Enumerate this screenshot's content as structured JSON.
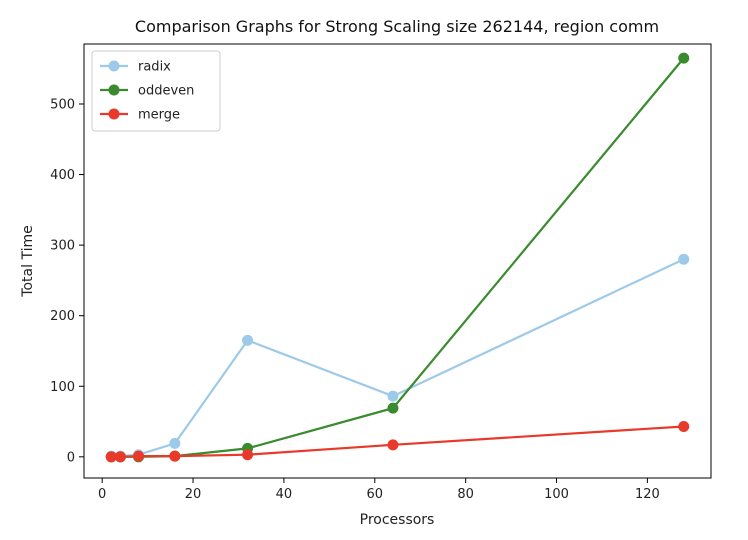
{
  "chart_data": {
    "type": "line",
    "title": "Comparison Graphs for Strong Scaling size 262144, region comm",
    "xlabel": "Processors",
    "ylabel": "Total Time",
    "xlim": [
      -4,
      134
    ],
    "ylim": [
      -30,
      585
    ],
    "xticks": [
      0,
      20,
      40,
      60,
      80,
      100,
      120
    ],
    "yticks": [
      0,
      100,
      200,
      300,
      400,
      500
    ],
    "grid": false,
    "legend_position": "top-left",
    "x": [
      2,
      4,
      8,
      16,
      32,
      64,
      128
    ],
    "series": [
      {
        "name": "radix",
        "color": "#9ecae9",
        "values": [
          1,
          1,
          3,
          19,
          165,
          86,
          280
        ]
      },
      {
        "name": "oddeven",
        "color": "#3a8a2e",
        "values": [
          0,
          0,
          0,
          1,
          12,
          69,
          565
        ]
      },
      {
        "name": "merge",
        "color": "#e8392b",
        "values": [
          0,
          0,
          1,
          1,
          3,
          17,
          43
        ]
      }
    ]
  }
}
